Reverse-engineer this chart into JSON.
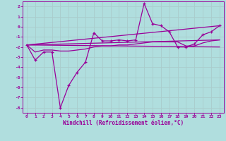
{
  "background_color": "#b0dede",
  "grid_color": "#c8e8e8",
  "line_color": "#990099",
  "xlabel": "Windchill (Refroidissement éolien,°C)",
  "xlim": [
    -0.5,
    23.5
  ],
  "ylim": [
    -8.5,
    2.5
  ],
  "xticks": [
    0,
    1,
    2,
    3,
    4,
    5,
    6,
    7,
    8,
    9,
    10,
    11,
    12,
    13,
    14,
    15,
    16,
    17,
    18,
    19,
    20,
    21,
    22,
    23
  ],
  "yticks": [
    -8,
    -7,
    -6,
    -5,
    -4,
    -3,
    -2,
    -1,
    0,
    1,
    2
  ],
  "line1_x": [
    0,
    1,
    2,
    3,
    4,
    5,
    6,
    7,
    8,
    9,
    10,
    11,
    12,
    13,
    14,
    15,
    16,
    17,
    18,
    19,
    20,
    21,
    22,
    23
  ],
  "line1_y": [
    -1.8,
    -3.3,
    -2.5,
    -2.5,
    -8.0,
    -5.8,
    -4.5,
    -3.5,
    -0.6,
    -1.4,
    -1.4,
    -1.3,
    -1.4,
    -1.3,
    2.3,
    0.3,
    0.1,
    -0.5,
    -2.0,
    -2.0,
    -1.7,
    -0.8,
    -0.5,
    0.1
  ],
  "line2_x": [
    0,
    1,
    2,
    3,
    4,
    5,
    6,
    7,
    8,
    9,
    10,
    11,
    12,
    13,
    14,
    15,
    16,
    17,
    18,
    19,
    20,
    21,
    22,
    23
  ],
  "line2_y": [
    -1.8,
    -2.5,
    -2.3,
    -2.3,
    -2.4,
    -2.4,
    -2.3,
    -2.2,
    -2.0,
    -1.9,
    -1.9,
    -1.8,
    -1.8,
    -1.7,
    -1.6,
    -1.5,
    -1.5,
    -1.5,
    -1.5,
    -1.9,
    -1.9,
    -1.6,
    -1.4,
    -1.3
  ],
  "line3_x": [
    0,
    23
  ],
  "line3_y": [
    -1.8,
    0.1
  ],
  "line4_x": [
    0,
    23
  ],
  "line4_y": [
    -1.8,
    -2.0
  ],
  "line5_x": [
    0,
    23
  ],
  "line5_y": [
    -1.8,
    -1.3
  ]
}
